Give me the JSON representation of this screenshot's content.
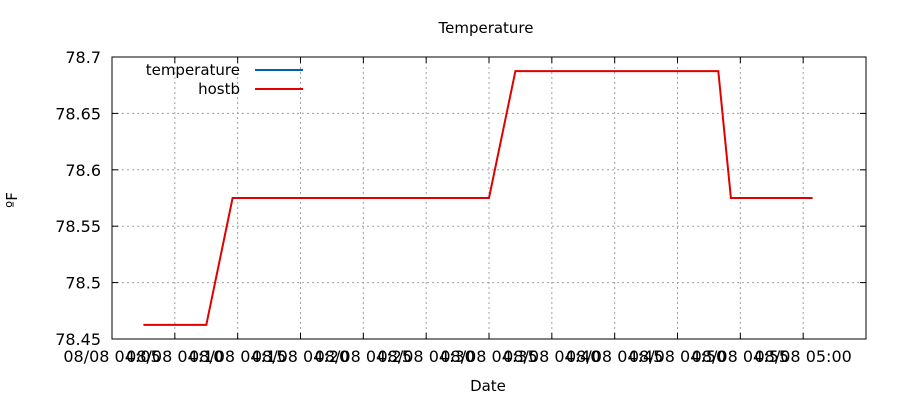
{
  "chart_data": {
    "type": "line",
    "title": "Temperature",
    "xlabel": "Date",
    "ylabel": "ºF",
    "ylim": [
      78.45,
      78.7
    ],
    "yticks": [
      78.45,
      78.5,
      78.55,
      78.6,
      78.65,
      78.7
    ],
    "ytick_labels": [
      "78.45",
      "78.5",
      "78.55",
      "78.6",
      "78.65",
      "78.7"
    ],
    "xtick_labels": [
      "08/08 04:05",
      "08/08 04:10",
      "08/08 04:15",
      "08/08 04:20",
      "08/08 04:25",
      "08/08 04:30",
      "08/08 04:35",
      "08/08 04:40",
      "08/08 04:45",
      "08/08 04:50",
      "08/08 04:55",
      "08/08 05:00"
    ],
    "xlim": [
      0,
      12
    ],
    "xticks": [
      0,
      1,
      2,
      3,
      4,
      5,
      6,
      7,
      8,
      9,
      10,
      11
    ],
    "grid": true,
    "legend_position": "top-left",
    "series": [
      {
        "name": "temperature",
        "color": "#0060ad",
        "x": [],
        "y": []
      },
      {
        "name": "hostb",
        "color": "#e00000",
        "x": [
          0.5,
          1.5,
          1.92,
          6.0,
          6.42,
          9.65,
          9.85,
          11.15
        ],
        "y": [
          78.4625,
          78.4625,
          78.575,
          78.575,
          78.6875,
          78.6875,
          78.575,
          78.575
        ]
      }
    ]
  }
}
